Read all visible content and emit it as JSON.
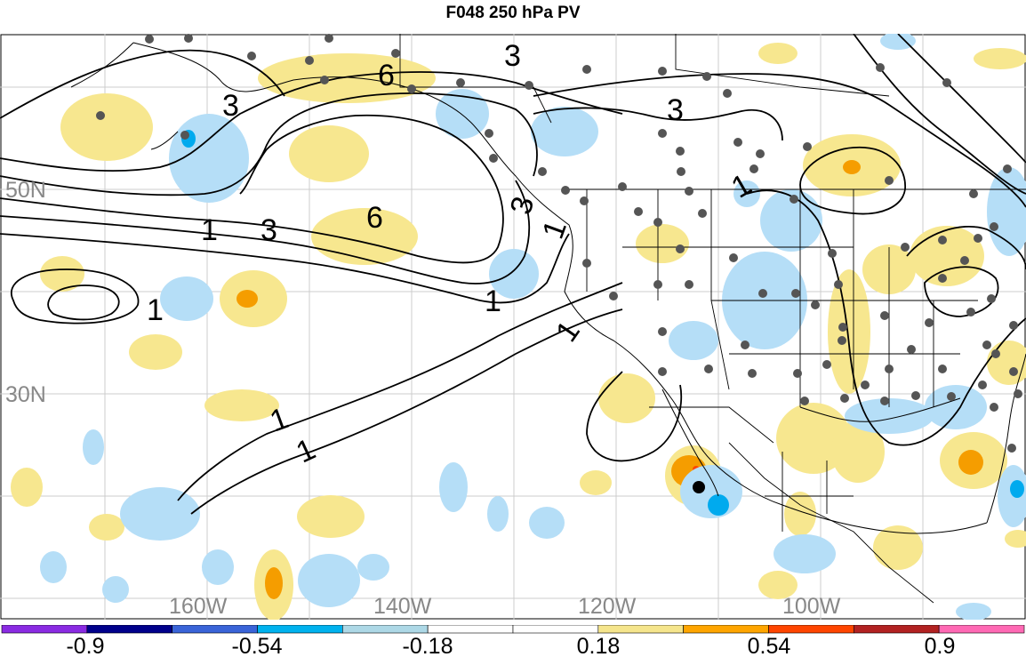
{
  "title": "F048 250 hPa PV",
  "lat_labels": [
    "50N",
    "30N"
  ],
  "lon_labels": [
    "160W",
    "140W",
    "120W",
    "100W"
  ],
  "contour_labels": [
    "1",
    "3",
    "6"
  ],
  "colorbar": {
    "tick_labels": [
      "-0.9",
      "-0.54",
      "-0.18",
      "0.18",
      "0.54",
      "0.9"
    ],
    "colors": [
      "#8a2be2",
      "#00008b",
      "#3a64d8",
      "#00b2ee",
      "#add8e6",
      "#ffffff",
      "#ffffff",
      "#f5e58c",
      "#ffa500",
      "#ff4500",
      "#b22222",
      "#ff69b4"
    ]
  },
  "colors": {
    "positive_light": "#f7e78f",
    "positive_mid": "#f59d00",
    "positive_high": "#ff4500",
    "negative_light": "#b5def7",
    "negative_mid": "#00aaee",
    "station_dots": "#555555",
    "contours": "#000000",
    "grid": "#c8c8c8"
  }
}
